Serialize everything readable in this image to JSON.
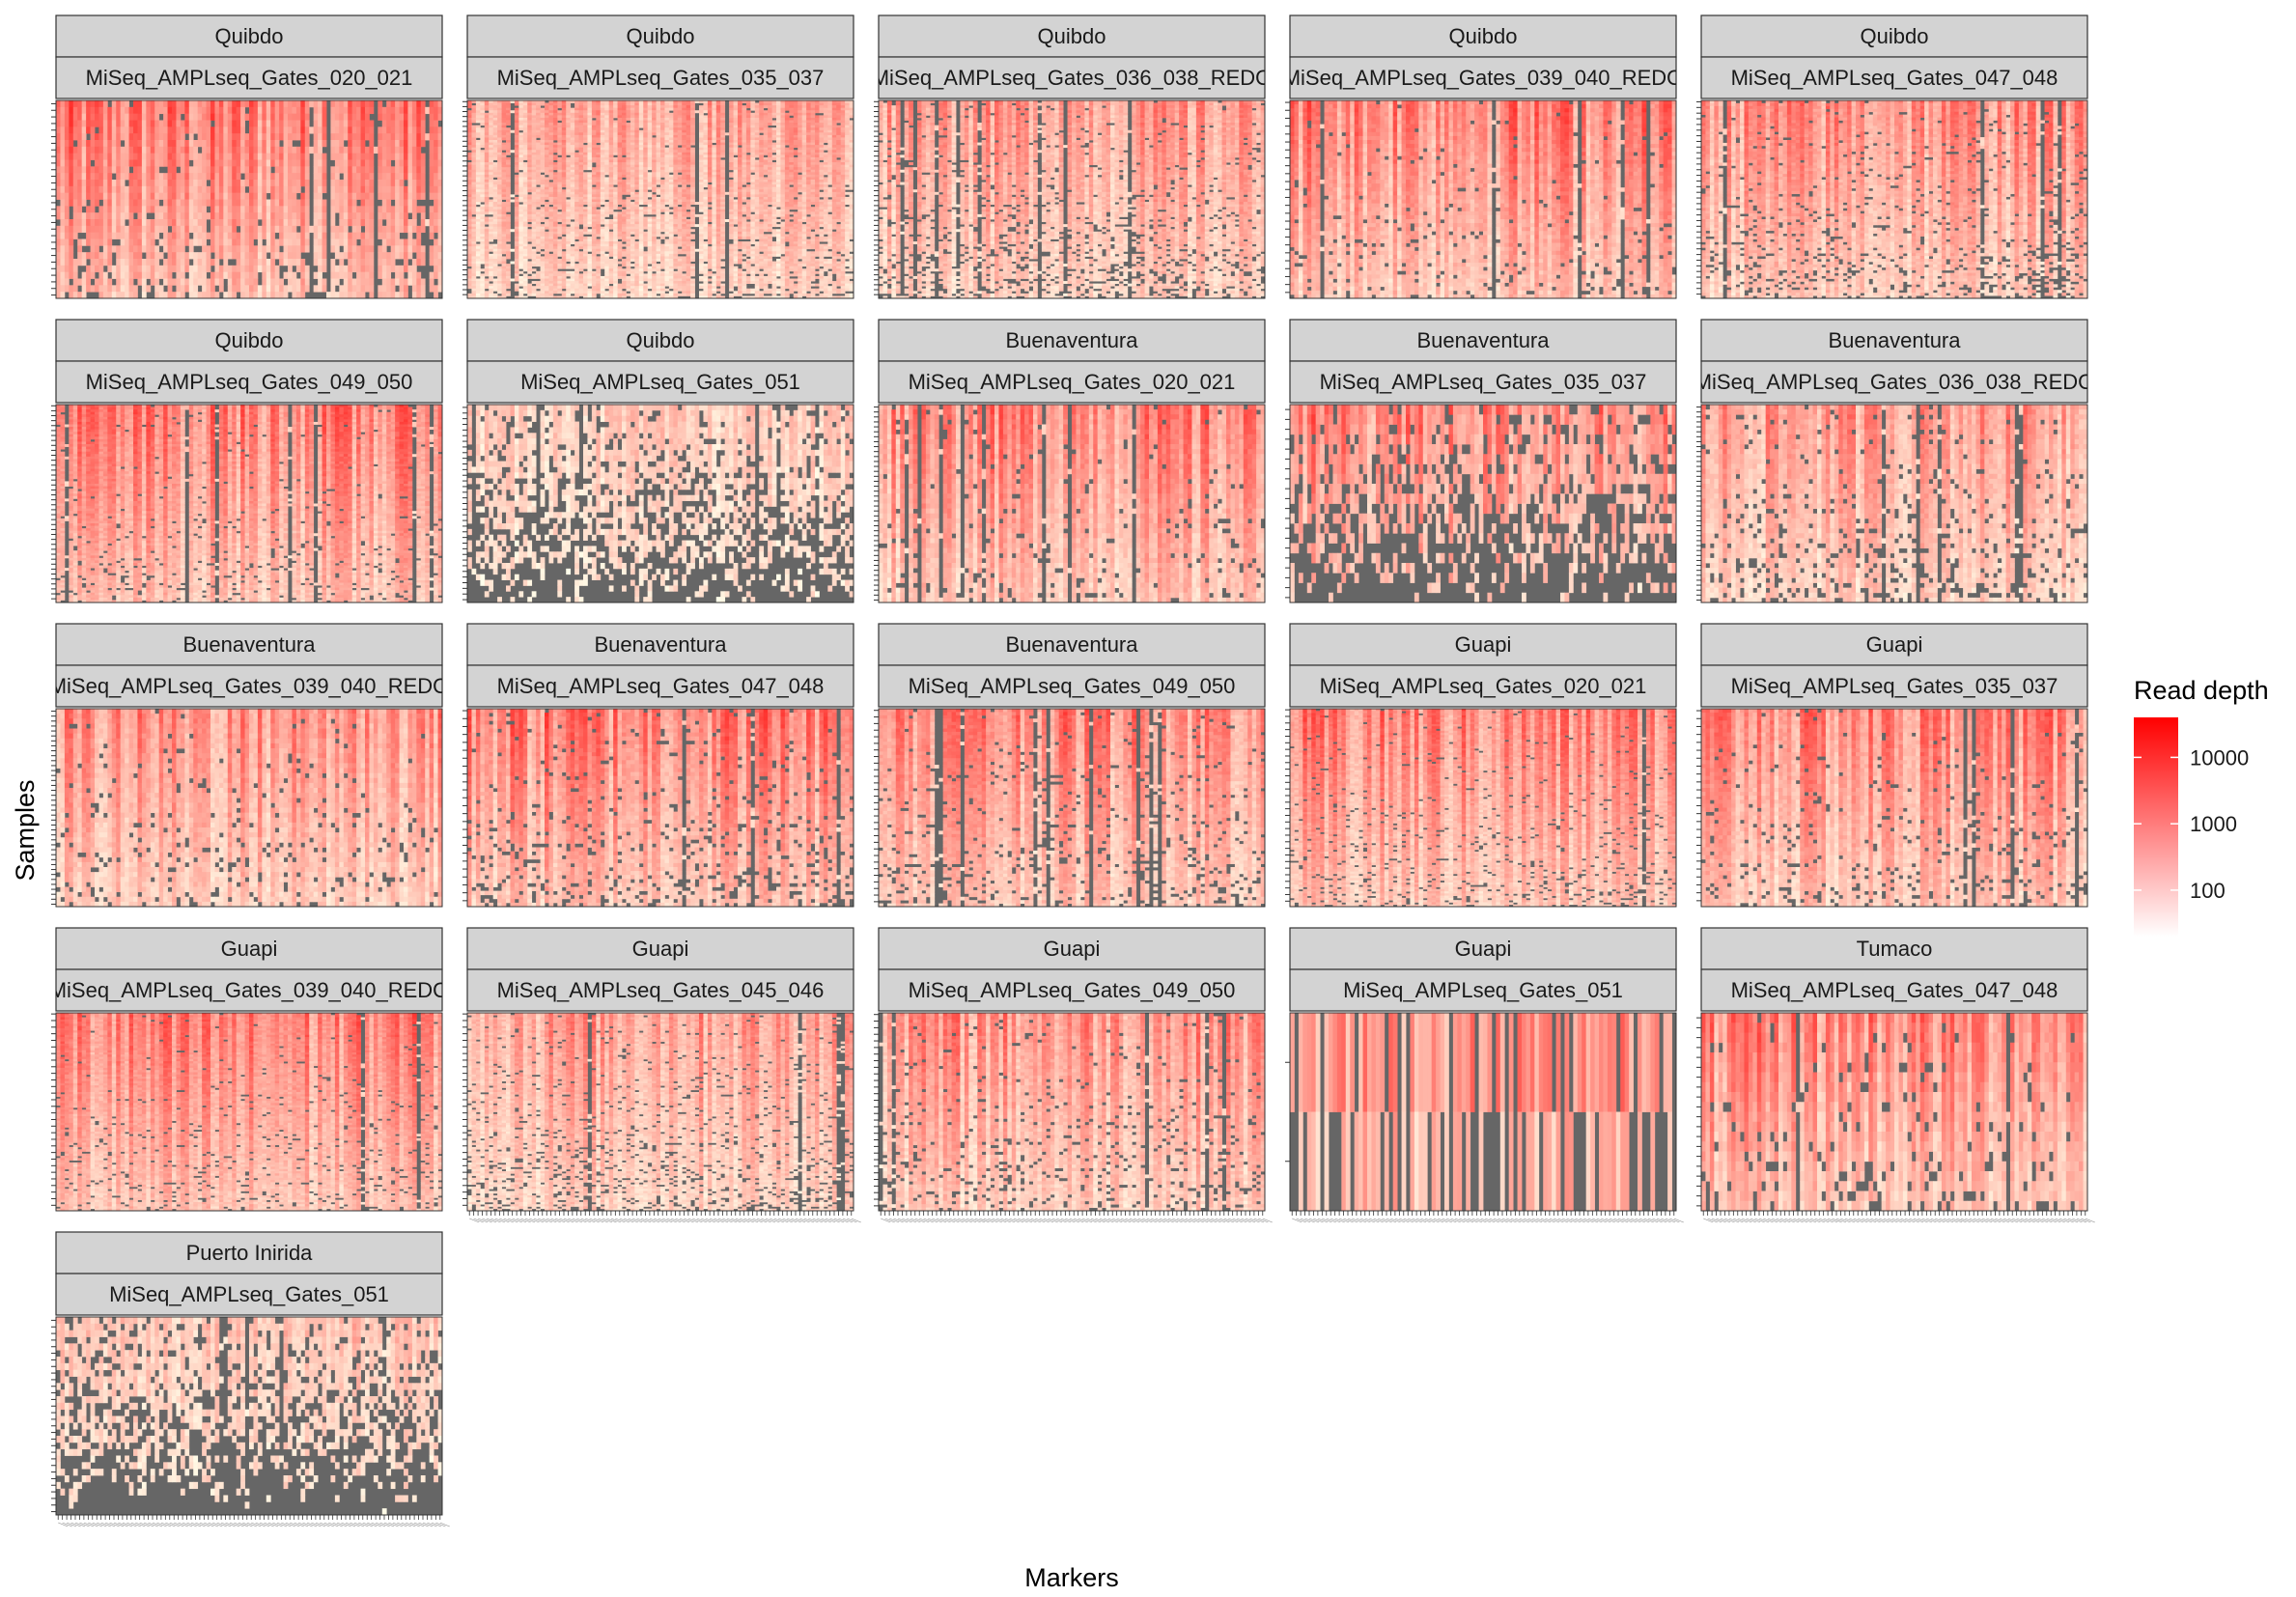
{
  "chart_data": {
    "type": "heatmap",
    "xlabel": "Markers",
    "ylabel": "Samples",
    "legend": {
      "title": "Read depth",
      "position": "right",
      "scale": "log10",
      "ticks": [
        "10000",
        "1000",
        "100"
      ],
      "tick_values": [
        10000,
        1000,
        100
      ],
      "range": [
        20,
        40000
      ],
      "low_color": "#ffffff",
      "high_color": "#ff0000",
      "na_color": "#666666"
    },
    "strip_fill": "#d3d3d3",
    "panels": [
      {
        "city": "Quibdo",
        "run": "MiSeq_AMPLseq_Gates_020_021",
        "samples": 30,
        "missing": 0.1,
        "intensity": 0.65
      },
      {
        "city": "Quibdo",
        "run": "MiSeq_AMPLseq_Gates_035_037",
        "samples": 80,
        "missing": 0.08,
        "intensity": 0.45
      },
      {
        "city": "Quibdo",
        "run": "MiSeq_AMPLseq_Gates_036_038_REDO",
        "samples": 80,
        "missing": 0.14,
        "intensity": 0.5
      },
      {
        "city": "Quibdo",
        "run": "MiSeq_AMPLseq_Gates_039_040_REDO",
        "samples": 50,
        "missing": 0.06,
        "intensity": 0.65
      },
      {
        "city": "Quibdo",
        "run": "MiSeq_AMPLseq_Gates_047_048",
        "samples": 70,
        "missing": 0.12,
        "intensity": 0.55
      },
      {
        "city": "Quibdo",
        "run": "MiSeq_AMPLseq_Gates_049_050",
        "samples": 80,
        "missing": 0.05,
        "intensity": 0.62
      },
      {
        "city": "Quibdo",
        "run": "MiSeq_AMPLseq_Gates_051",
        "samples": 35,
        "missing": 0.45,
        "intensity": 0.25
      },
      {
        "city": "Buenaventura",
        "run": "MiSeq_AMPLseq_Gates_020_021",
        "samples": 40,
        "missing": 0.06,
        "intensity": 0.6
      },
      {
        "city": "Buenaventura",
        "run": "MiSeq_AMPLseq_Gates_035_037",
        "samples": 20,
        "missing": 0.5,
        "intensity": 0.6
      },
      {
        "city": "Buenaventura",
        "run": "MiSeq_AMPLseq_Gates_036_038_REDO",
        "samples": 40,
        "missing": 0.12,
        "intensity": 0.5
      },
      {
        "city": "Buenaventura",
        "run": "MiSeq_AMPLseq_Gates_039_040_REDO",
        "samples": 40,
        "missing": 0.08,
        "intensity": 0.55
      },
      {
        "city": "Buenaventura",
        "run": "MiSeq_AMPLseq_Gates_047_048",
        "samples": 50,
        "missing": 0.12,
        "intensity": 0.65
      },
      {
        "city": "Buenaventura",
        "run": "MiSeq_AMPLseq_Gates_049_050",
        "samples": 60,
        "missing": 0.1,
        "intensity": 0.6
      },
      {
        "city": "Guapi",
        "run": "MiSeq_AMPLseq_Gates_020_021",
        "samples": 90,
        "missing": 0.07,
        "intensity": 0.6
      },
      {
        "city": "Guapi",
        "run": "MiSeq_AMPLseq_Gates_035_037",
        "samples": 50,
        "missing": 0.08,
        "intensity": 0.6
      },
      {
        "city": "Guapi",
        "run": "MiSeq_AMPLseq_Gates_039_040_REDO",
        "samples": 90,
        "missing": 0.06,
        "intensity": 0.6
      },
      {
        "city": "Guapi",
        "run": "MiSeq_AMPLseq_Gates_045_046",
        "samples": 90,
        "missing": 0.12,
        "intensity": 0.5
      },
      {
        "city": "Guapi",
        "run": "MiSeq_AMPLseq_Gates_049_050",
        "samples": 60,
        "missing": 0.1,
        "intensity": 0.55
      },
      {
        "city": "Guapi",
        "run": "MiSeq_AMPLseq_Gates_051",
        "samples": 2,
        "missing": 0.5,
        "intensity": 0.5
      },
      {
        "city": "Tumaco",
        "run": "MiSeq_AMPLseq_Gates_047_048",
        "samples": 20,
        "missing": 0.1,
        "intensity": 0.6
      },
      {
        "city": "Puerto Inirida",
        "run": "MiSeq_AMPLseq_Gates_051",
        "samples": 30,
        "missing": 0.55,
        "intensity": 0.3
      }
    ]
  }
}
